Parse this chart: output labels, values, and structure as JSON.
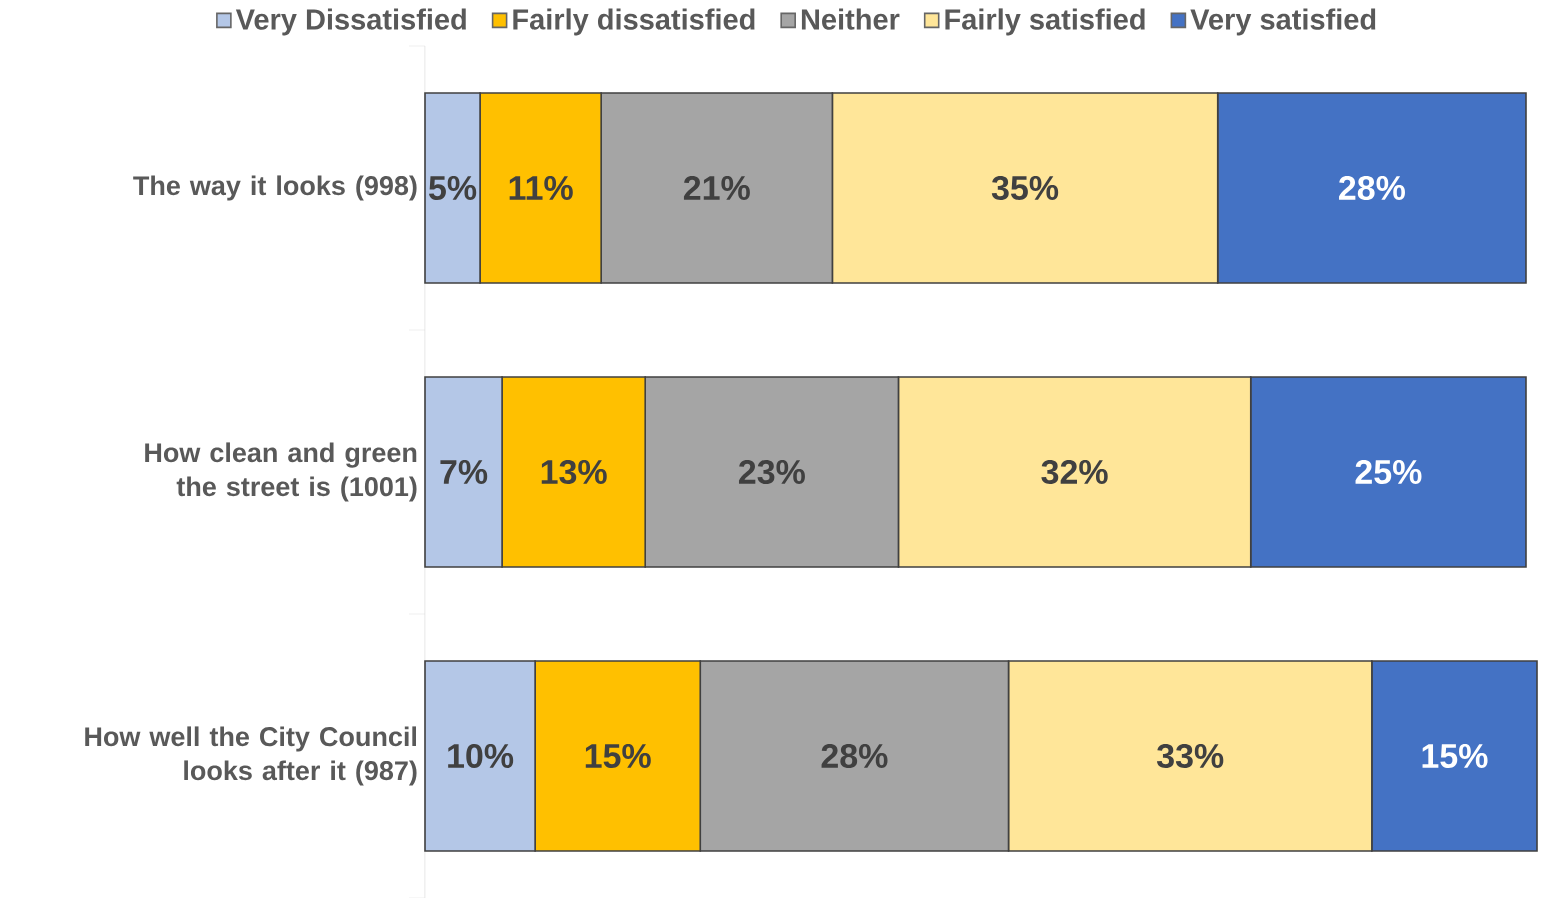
{
  "chart_data": {
    "type": "bar",
    "orientation": "horizontal",
    "stacked": true,
    "legend": "top",
    "categories": [
      "The way it looks (998)",
      "How clean and green the street is (1001)",
      "How well the City Council looks after it (987)"
    ],
    "series": [
      {
        "name": "Very Dissatisfied",
        "color": "#b4c7e7",
        "values": [
          5,
          7,
          10
        ],
        "value_labels": [
          "5%",
          "7%",
          "10%"
        ]
      },
      {
        "name": "Fairly dissatisfied",
        "color": "#ffc000",
        "values": [
          11,
          13,
          15
        ],
        "value_labels": [
          "11%",
          "13%",
          "15%"
        ]
      },
      {
        "name": "Neither",
        "color": "#a5a5a5",
        "values": [
          21,
          23,
          28
        ],
        "value_labels": [
          "21%",
          "23%",
          "28%"
        ]
      },
      {
        "name": "Fairly satisfied",
        "color": "#ffe699",
        "values": [
          35,
          32,
          33
        ],
        "value_labels": [
          "35%",
          "32%",
          "33%"
        ]
      },
      {
        "name": "Very satisfied",
        "color": "#4472c4",
        "values": [
          28,
          25,
          15
        ],
        "value_labels": [
          "28%",
          "25%",
          "15%"
        ]
      }
    ]
  }
}
